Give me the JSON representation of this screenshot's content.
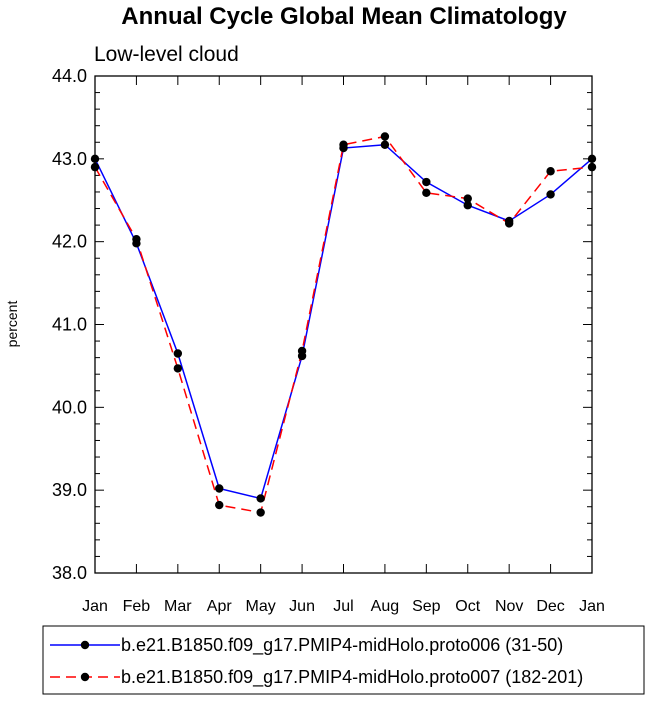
{
  "chart_data": {
    "type": "line",
    "title": "Annual Cycle Global Mean Climatology",
    "subtitle": "Low-level cloud",
    "xlabel": "",
    "ylabel": "percent",
    "categories": [
      "Jan",
      "Feb",
      "Mar",
      "Apr",
      "May",
      "Jun",
      "Jul",
      "Aug",
      "Sep",
      "Oct",
      "Nov",
      "Dec",
      "Jan"
    ],
    "ylim": [
      38.0,
      44.0
    ],
    "yticks": [
      "38.0",
      "39.0",
      "40.0",
      "41.0",
      "42.0",
      "43.0",
      "44.0"
    ],
    "grid": false,
    "legend_position": "bottom",
    "series": [
      {
        "name": "b.e21.B1850.f09_g17.PMIP4-midHolo.proto006 (31-50)",
        "color": "#0000ff",
        "dash": "solid",
        "values": [
          43.0,
          41.98,
          40.65,
          39.02,
          38.9,
          40.62,
          43.13,
          43.17,
          42.72,
          42.44,
          42.25,
          42.57,
          43.0
        ]
      },
      {
        "name": "b.e21.B1850.f09_g17.PMIP4-midHolo.proto007 (182-201)",
        "color": "#ff0000",
        "dash": "dashed",
        "values": [
          42.9,
          42.03,
          40.47,
          38.82,
          38.73,
          40.68,
          43.17,
          43.27,
          42.59,
          42.52,
          42.22,
          42.85,
          42.9
        ]
      }
    ]
  }
}
